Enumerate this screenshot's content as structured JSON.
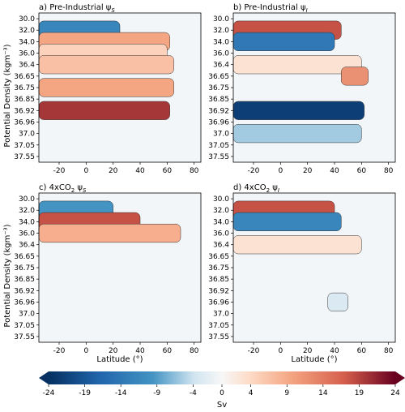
{
  "figure": {
    "ylabel": "Potential Density (kgm⁻³)",
    "xlabel": "Latitude (°)",
    "colorbar_label": "Sv",
    "colormap": {
      "negative": "#053061",
      "mid": "#f7f7f7",
      "positive": "#67001f"
    }
  },
  "chart_data": [
    {
      "type": "heatmap",
      "panel": "a",
      "title": "a) Pre-Industrial ψ",
      "title_sub": "S",
      "x_ticks": [
        "-20",
        "0",
        "20",
        "40",
        "60",
        "80"
      ],
      "y_ticks": [
        "30.0",
        "32.0",
        "34.0",
        "36.0",
        "36.4",
        "36.65",
        "36.75",
        "36.85",
        "36.92",
        "36.96",
        "37.0",
        "37.05",
        "37.55"
      ],
      "xlim": [
        -35,
        85
      ],
      "bands": [
        {
          "sigma": 32.0,
          "lat_range": [
            -35,
            25
          ],
          "value": -12
        },
        {
          "sigma": 34.0,
          "lat_range": [
            -35,
            62
          ],
          "value": 10
        },
        {
          "sigma": 36.0,
          "lat_range": [
            -35,
            60
          ],
          "value": 5
        },
        {
          "sigma": 36.4,
          "lat_range": [
            -35,
            65
          ],
          "value": 7
        },
        {
          "sigma": 36.75,
          "lat_range": [
            -35,
            65
          ],
          "value": 10
        },
        {
          "sigma": 36.92,
          "lat_range": [
            -35,
            62
          ],
          "value": 20
        }
      ]
    },
    {
      "type": "heatmap",
      "panel": "b",
      "title": "b) Pre-Industrial ψ",
      "title_sub": "I",
      "x_ticks": [
        "-20",
        "0",
        "20",
        "40",
        "60",
        "80"
      ],
      "y_ticks": [
        "30.0",
        "32.0",
        "34.0",
        "36.0",
        "36.4",
        "36.65",
        "36.75",
        "36.85",
        "36.92",
        "36.96",
        "37.0",
        "37.05",
        "37.55"
      ],
      "xlim": [
        -35,
        85
      ],
      "bands": [
        {
          "sigma": 32.0,
          "lat_range": [
            -35,
            45
          ],
          "value": 18
        },
        {
          "sigma": 34.0,
          "lat_range": [
            -35,
            40
          ],
          "value": -14
        },
        {
          "sigma": 36.4,
          "lat_range": [
            -35,
            60
          ],
          "value": 3
        },
        {
          "sigma": 36.65,
          "lat_range": [
            45,
            65
          ],
          "value": 12
        },
        {
          "sigma": 36.92,
          "lat_range": [
            -35,
            62
          ],
          "value": -22
        },
        {
          "sigma": 37.0,
          "lat_range": [
            -35,
            60
          ],
          "value": -6
        }
      ]
    },
    {
      "type": "heatmap",
      "panel": "c",
      "title": "c) 4xCO",
      "title_suffix": "2",
      "title_psi": " ψ",
      "title_sub": "S",
      "x_ticks": [
        "-20",
        "0",
        "20",
        "40",
        "60",
        "80"
      ],
      "y_ticks": [
        "30.0",
        "32.0",
        "34.0",
        "36.0",
        "36.4",
        "36.65",
        "36.75",
        "36.85",
        "36.92",
        "36.96",
        "37.0",
        "37.05",
        "37.55"
      ],
      "xlim": [
        -35,
        85
      ],
      "bands": [
        {
          "sigma": 32.0,
          "lat_range": [
            -35,
            20
          ],
          "value": -10
        },
        {
          "sigma": 34.0,
          "lat_range": [
            -35,
            40
          ],
          "value": 18
        },
        {
          "sigma": 36.0,
          "lat_range": [
            -35,
            70
          ],
          "value": 9
        }
      ]
    },
    {
      "type": "heatmap",
      "panel": "d",
      "title": "d) 4xCO",
      "title_suffix": "2",
      "title_psi": " ψ",
      "title_sub": "I",
      "x_ticks": [
        "-20",
        "0",
        "20",
        "40",
        "60",
        "80"
      ],
      "y_ticks": [
        "30.0",
        "32.0",
        "34.0",
        "36.0",
        "36.4",
        "36.65",
        "36.75",
        "36.85",
        "36.92",
        "36.96",
        "37.0",
        "37.05",
        "37.55"
      ],
      "xlim": [
        -35,
        85
      ],
      "bands": [
        {
          "sigma": 32.0,
          "lat_range": [
            -35,
            40
          ],
          "value": 18
        },
        {
          "sigma": 34.0,
          "lat_range": [
            -35,
            45
          ],
          "value": -12
        },
        {
          "sigma": 36.4,
          "lat_range": [
            -35,
            60
          ],
          "value": 3
        },
        {
          "sigma": 36.96,
          "lat_range": [
            35,
            50
          ],
          "value": -3
        }
      ]
    }
  ],
  "colorbar": {
    "ticks": [
      "-24",
      "-19",
      "-14",
      "-9",
      "-4",
      "0",
      "4",
      "9",
      "14",
      "19",
      "24"
    ],
    "range": [
      -24,
      24
    ]
  }
}
